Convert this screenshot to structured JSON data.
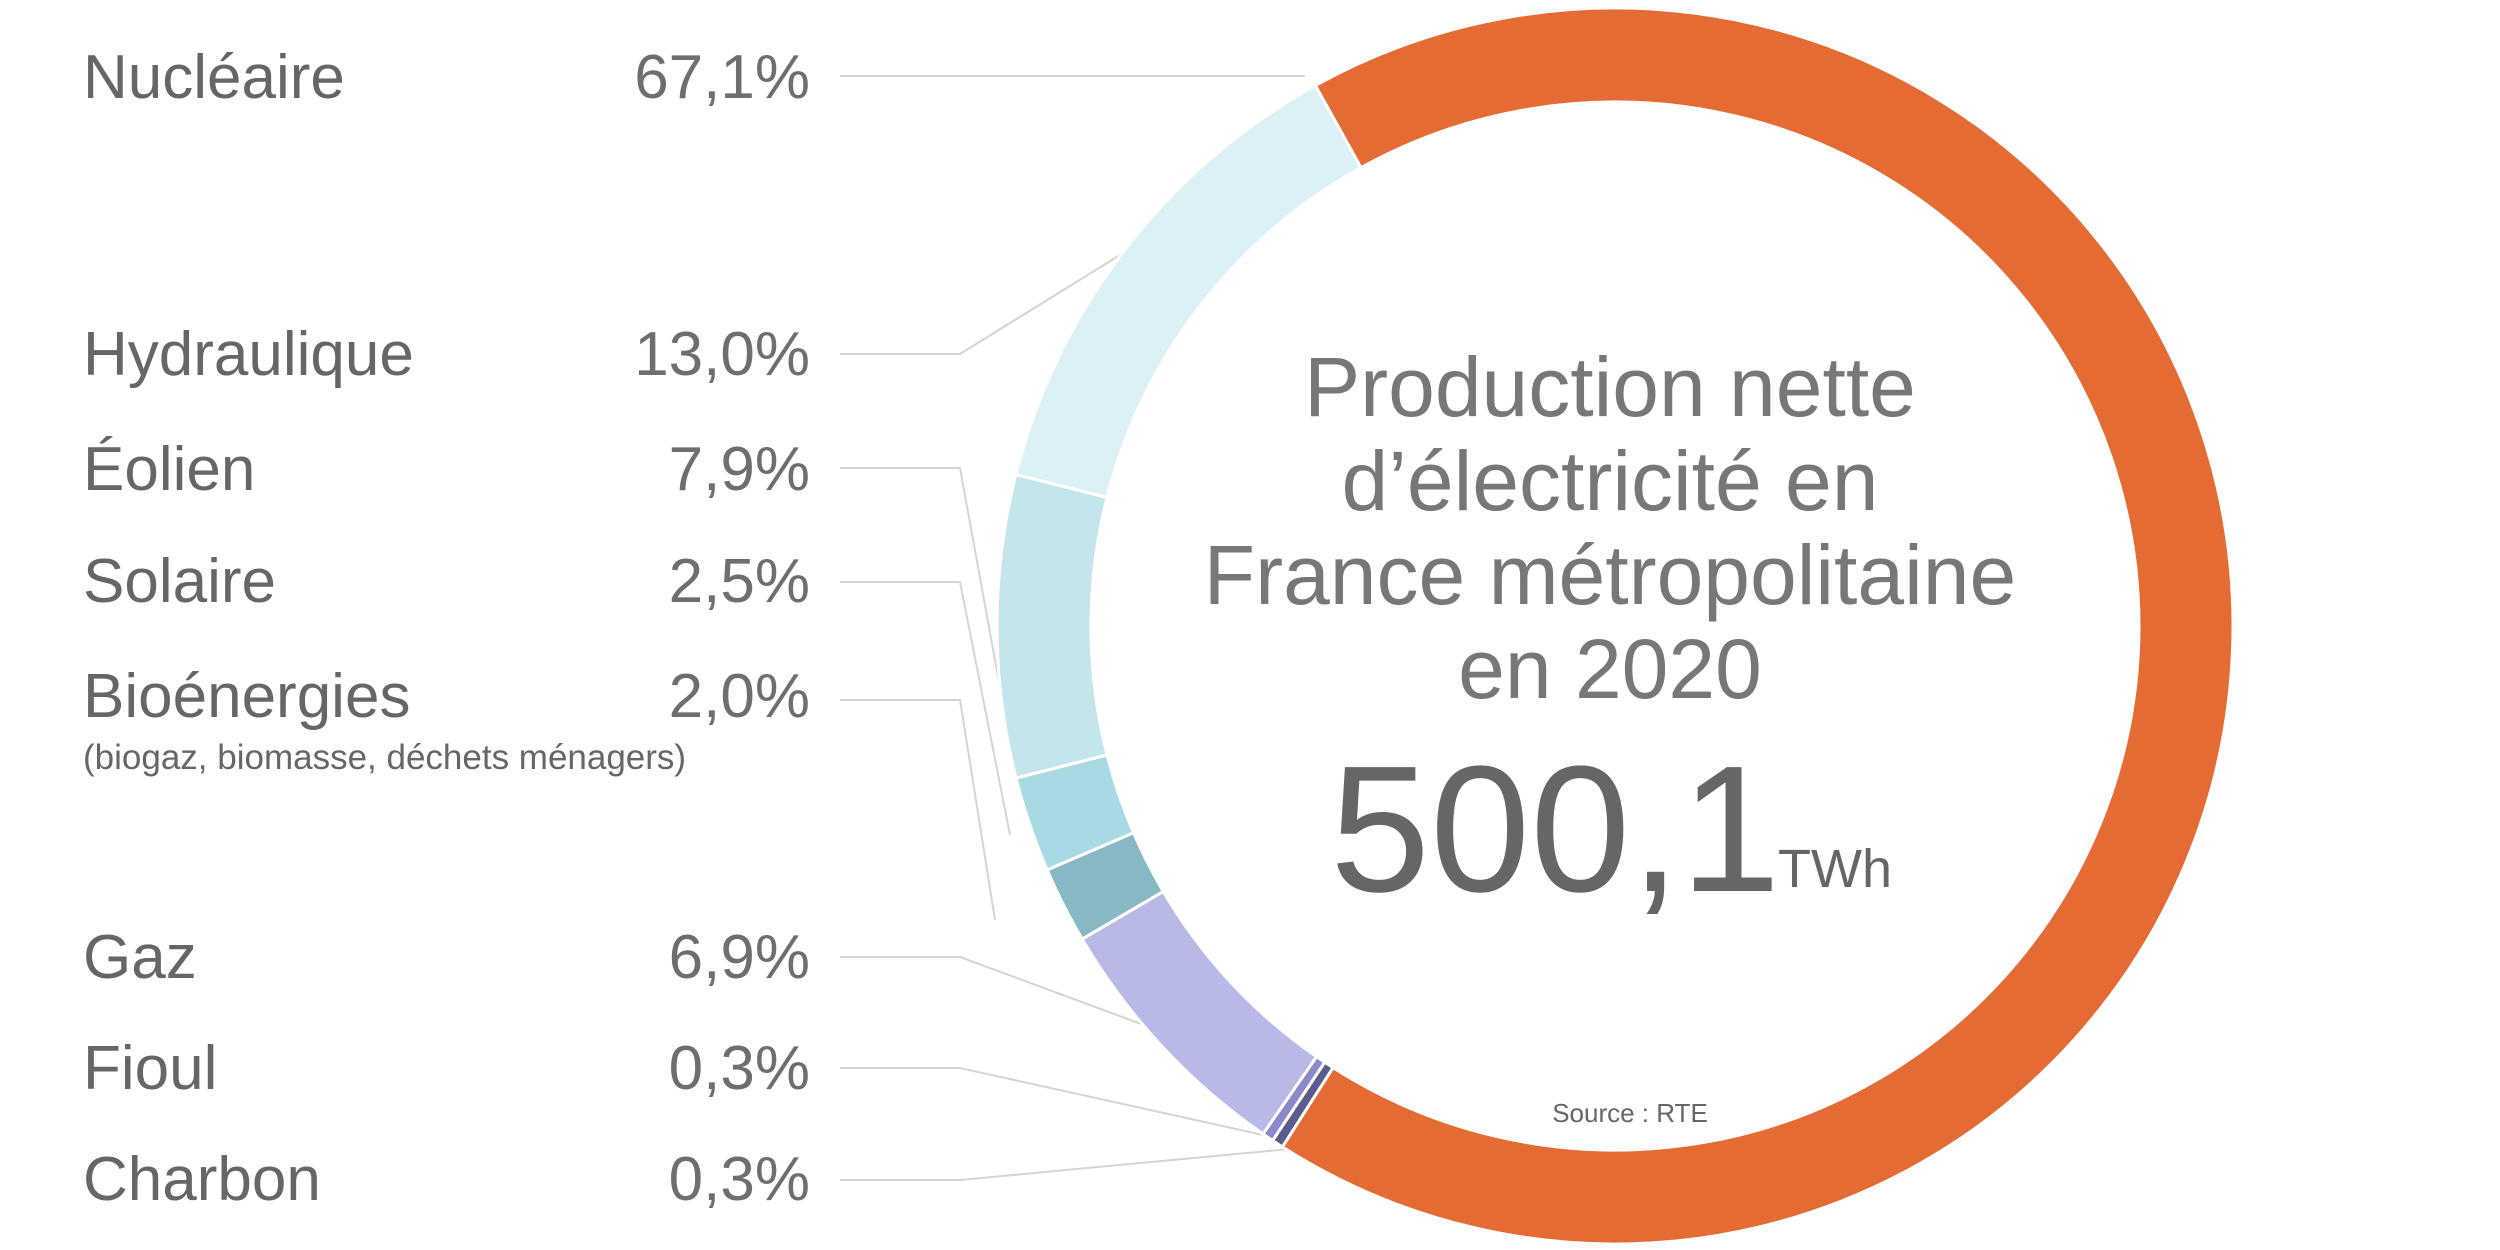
{
  "chart_data": {
    "type": "pie",
    "variant": "donut",
    "title": "Production nette d’électricité en France métropolitaine en 2020",
    "title_lines": [
      "Production nette",
      "d’électricité en",
      "France métropolitaine",
      "en 2020"
    ],
    "total_value": "500,1",
    "total_unit": "TWh",
    "source": "Source : RTE",
    "labels": [
      {
        "name": "Nucléaire",
        "pct": "67,1%"
      },
      {
        "name": "Hydraulique",
        "pct": "13,0%"
      },
      {
        "name": "Éolien",
        "pct": "7,9%"
      },
      {
        "name": "Solaire",
        "pct": "2,5%"
      },
      {
        "name": "Bioénergies",
        "pct": "2,0%",
        "note": "(biogaz, biomasse, déchets ménagers)"
      },
      {
        "name": "Gaz",
        "pct": "6,9%"
      },
      {
        "name": "Fioul",
        "pct": "0,3%"
      },
      {
        "name": "Charbon",
        "pct": "0,3%"
      }
    ],
    "ring_order": [
      {
        "key": "Nucléaire",
        "value": 67.1,
        "color": "#e56b34"
      },
      {
        "key": "Charbon",
        "value": 0.3,
        "color": "#5b5b8c"
      },
      {
        "key": "Fioul",
        "value": 0.3,
        "color": "#8a89c9"
      },
      {
        "key": "Gaz",
        "value": 6.9,
        "color": "#b9b9e8"
      },
      {
        "key": "Bioénergies",
        "value": 2.0,
        "color": "#86b9c3"
      },
      {
        "key": "Solaire",
        "value": 2.5,
        "color": "#a8dae3"
      },
      {
        "key": "Éolien",
        "value": 7.9,
        "color": "#c4e5eb"
      },
      {
        "key": "Hydraulique",
        "value": 13.0,
        "color": "#dcf1f5"
      }
    ]
  }
}
